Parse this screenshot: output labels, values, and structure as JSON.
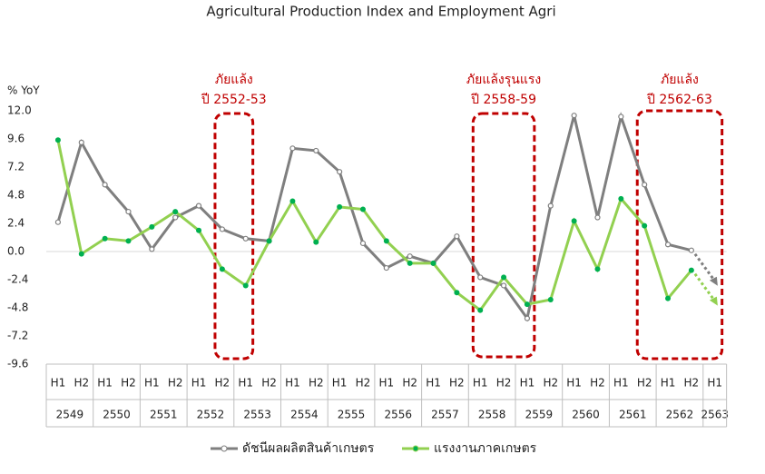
{
  "chart_data": {
    "type": "line",
    "title": "Agricultural Production Index and Employment Agri",
    "y_label": "% YoY",
    "categories": [
      "H1",
      "H2",
      "H1",
      "H2",
      "H1",
      "H2",
      "H1",
      "H2",
      "H1",
      "H2",
      "H1",
      "H2",
      "H1",
      "H2",
      "H1",
      "H2",
      "H1",
      "H2",
      "H1",
      "H2",
      "H1",
      "H2",
      "H1",
      "H2",
      "H1",
      "H2",
      "H1",
      "H2",
      "H1"
    ],
    "x_groups": [
      "2549",
      "2550",
      "2551",
      "2552",
      "2553",
      "2554",
      "2555",
      "2556",
      "2557",
      "2558",
      "2559",
      "2560",
      "2561",
      "2562",
      "2563"
    ],
    "series": [
      {
        "name": "ดัชนีผลผลิตสินค้าเกษตร",
        "color": "#7f7f7f",
        "values": [
          2.5,
          9.3,
          5.7,
          3.4,
          0.2,
          2.9,
          3.9,
          1.9,
          1.1,
          0.9,
          8.8,
          8.6,
          6.8,
          0.7,
          -1.4,
          -0.4,
          -1.0,
          1.3,
          -2.2,
          -2.9,
          -5.7,
          3.9,
          11.6,
          2.9,
          11.5,
          5.7,
          0.6,
          0.1,
          null
        ]
      },
      {
        "name": "แรงงานภาคเกษตร",
        "color": "#92d050",
        "values": [
          9.5,
          -0.2,
          1.1,
          0.9,
          2.1,
          3.4,
          1.8,
          -1.5,
          -2.9,
          0.9,
          4.3,
          0.8,
          3.8,
          3.6,
          0.9,
          -1.0,
          -1.0,
          -3.5,
          -5.0,
          -2.2,
          -4.5,
          -4.1,
          2.6,
          -1.5,
          4.5,
          2.2,
          -4.0,
          -1.6,
          null
        ]
      }
    ],
    "ylim": [
      -9.6,
      12.0
    ],
    "yticks": [
      {
        "value": 12.0,
        "label": "12.0"
      },
      {
        "value": 9.6,
        "label": "9.6"
      },
      {
        "value": 7.2,
        "label": "7.2"
      },
      {
        "value": 4.8,
        "label": "4.8"
      },
      {
        "value": 2.4,
        "label": "2.4"
      },
      {
        "value": 0,
        "label": "0.0"
      },
      {
        "value": -2.4,
        "label": "-2.4"
      },
      {
        "value": -4.8,
        "label": "-4.8"
      },
      {
        "value": -7.2,
        "label": "-7.2"
      },
      {
        "value": -9.6,
        "label": "-9.6"
      }
    ],
    "annotations": [
      {
        "lines": [
          "ภัยแล้ง",
          "ปี 2552-53"
        ]
      },
      {
        "lines": [
          "ภัยแล้งรุนแรง",
          "ปี 2558-59"
        ]
      },
      {
        "lines": [
          "ภัยแล้ง",
          "ปี 2562-63"
        ]
      }
    ]
  }
}
